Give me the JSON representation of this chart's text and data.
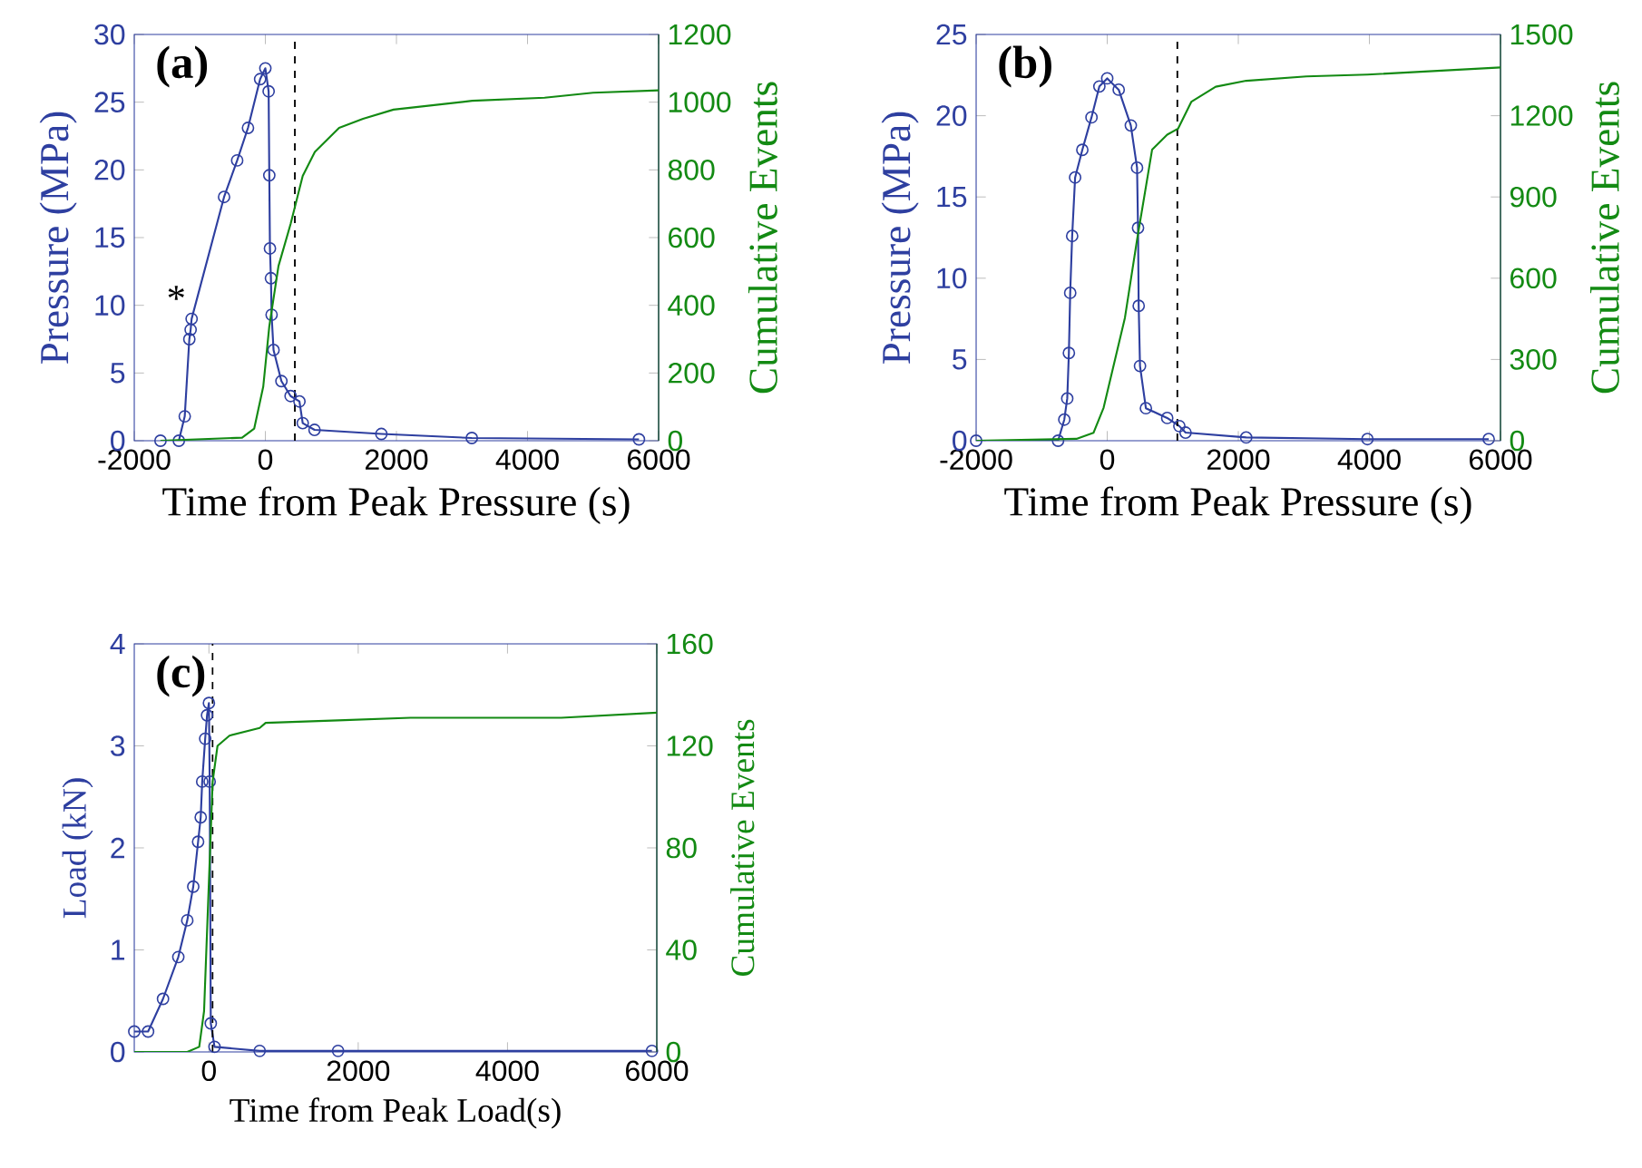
{
  "chart_data": [
    {
      "type": "line",
      "title": "(a)",
      "xlabel": "Time from Peak Pressure (s)",
      "ylabel": "Pressure (MPa)",
      "y2label": "Cumulative Events",
      "xlim": [
        -2000,
        6000
      ],
      "xticks": [
        -2000,
        0,
        2000,
        4000,
        6000
      ],
      "ylim": [
        0,
        30
      ],
      "yticks": [
        0,
        5,
        10,
        15,
        20,
        25,
        30
      ],
      "y2lim": [
        0,
        1200
      ],
      "y2ticks": [
        0,
        200,
        400,
        600,
        800,
        1000,
        1200
      ],
      "series": [
        {
          "color": "#2e3fa0",
          "marker": "circle",
          "x": [
            -1600,
            -1320,
            -1230,
            -1160,
            -1140,
            -1125,
            -630,
            -430,
            -265,
            -80,
            0,
            50,
            60,
            70,
            85,
            95,
            125,
            245,
            385,
            520,
            570,
            750,
            1770,
            3150,
            5700
          ],
          "values": [
            0,
            0,
            1.8,
            7.5,
            8.2,
            9.0,
            18.0,
            20.7,
            23.1,
            26.7,
            27.5,
            25.8,
            19.6,
            14.2,
            12.0,
            9.3,
            6.7,
            4.4,
            3.3,
            2.9,
            1.3,
            0.8,
            0.5,
            0.2,
            0.1
          ]
        },
        {
          "color": "#138a13",
          "axis": "y2",
          "x": [
            -1600,
            -355,
            -170,
            -32,
            60,
            200,
            385,
            570,
            755,
            1125,
            1490,
            1955,
            3155,
            4260,
            5000,
            6000
          ],
          "values": [
            0,
            9,
            36,
            160,
            338,
            516,
            640,
            782,
            853,
            924,
            951,
            978,
            1004,
            1013,
            1028,
            1035
          ]
        }
      ],
      "ref_lines": [
        {
          "axis": "x",
          "value": 450,
          "color": "#000000",
          "line_style": "dashed"
        }
      ],
      "annotations": [
        "*"
      ]
    },
    {
      "type": "line",
      "title": "(b)",
      "xlabel": "Time from Peak Pressure (s)",
      "ylabel": "Pressure (MPa)",
      "y2label": "Cumulative Events",
      "xlim": [
        -2000,
        6000
      ],
      "xticks": [
        -2000,
        0,
        2000,
        4000,
        6000
      ],
      "ylim": [
        0,
        25
      ],
      "yticks": [
        0,
        5,
        10,
        15,
        20,
        25
      ],
      "y2lim": [
        0,
        1500
      ],
      "y2ticks": [
        0,
        300,
        600,
        900,
        1200,
        1500
      ],
      "series": [
        {
          "color": "#2e3fa0",
          "marker": "circle",
          "x": [
            -2000,
            -750,
            -655,
            -610,
            -585,
            -565,
            -535,
            -490,
            -380,
            -240,
            -120,
            0,
            175,
            360,
            455,
            470,
            480,
            500,
            590,
            915,
            1100,
            1195,
            2120,
            3970,
            5820
          ],
          "values": [
            0,
            0,
            1.3,
            2.6,
            5.4,
            9.1,
            12.6,
            16.2,
            17.9,
            19.9,
            21.8,
            22.3,
            21.6,
            19.4,
            16.8,
            13.1,
            8.3,
            4.6,
            2.0,
            1.4,
            0.9,
            0.5,
            0.2,
            0.1,
            0.1
          ]
        },
        {
          "color": "#138a13",
          "axis": "y2",
          "x": [
            -2000,
            -470,
            -210,
            -55,
            270,
            455,
            685,
            915,
            1080,
            1285,
            1655,
            2120,
            3040,
            3970,
            6000
          ],
          "values": [
            0,
            7,
            29,
            122,
            454,
            742,
            1075,
            1130,
            1152,
            1252,
            1307,
            1329,
            1345,
            1352,
            1378
          ]
        }
      ],
      "ref_lines": [
        {
          "axis": "x",
          "value": 1070,
          "color": "#000000",
          "line_style": "dashed"
        }
      ]
    },
    {
      "type": "line",
      "title": "(c)",
      "xlabel": "Time from Peak Load(s)",
      "ylabel": "Load (kN)",
      "y2label": "Cumulative Events",
      "xlim": [
        -1000,
        6000
      ],
      "xticks": [
        0,
        2000,
        4000,
        6000
      ],
      "ylim": [
        0,
        4
      ],
      "yticks": [
        0,
        1,
        2,
        3,
        4
      ],
      "y2lim": [
        0,
        160
      ],
      "y2ticks": [
        0,
        40,
        80,
        120,
        160
      ],
      "series": [
        {
          "color": "#2e3fa0",
          "marker": "circle",
          "x": [
            -1000,
            -815,
            -615,
            -410,
            -290,
            -210,
            -145,
            -110,
            -90,
            -50,
            -25,
            0,
            10,
            25,
            75,
            680,
            1730,
            5935
          ],
          "values": [
            0.2,
            0.2,
            0.52,
            0.93,
            1.29,
            1.62,
            2.06,
            2.3,
            2.65,
            3.07,
            3.3,
            3.42,
            2.65,
            0.28,
            0.05,
            0.01,
            0.01,
            0.01
          ]
        },
        {
          "color": "#138a13",
          "axis": "y2",
          "x": [
            -1000,
            -290,
            -130,
            -65,
            -10,
            50,
            115,
            275,
            680,
            760,
            1730,
            2700,
            4720,
            6000
          ],
          "values": [
            0,
            0,
            2,
            16,
            59,
            106,
            120,
            124,
            127,
            129,
            130,
            131,
            131,
            133
          ]
        }
      ],
      "ref_lines": [
        {
          "axis": "x",
          "value": 50,
          "color": "#000000",
          "line_style": "dashed"
        }
      ]
    }
  ]
}
